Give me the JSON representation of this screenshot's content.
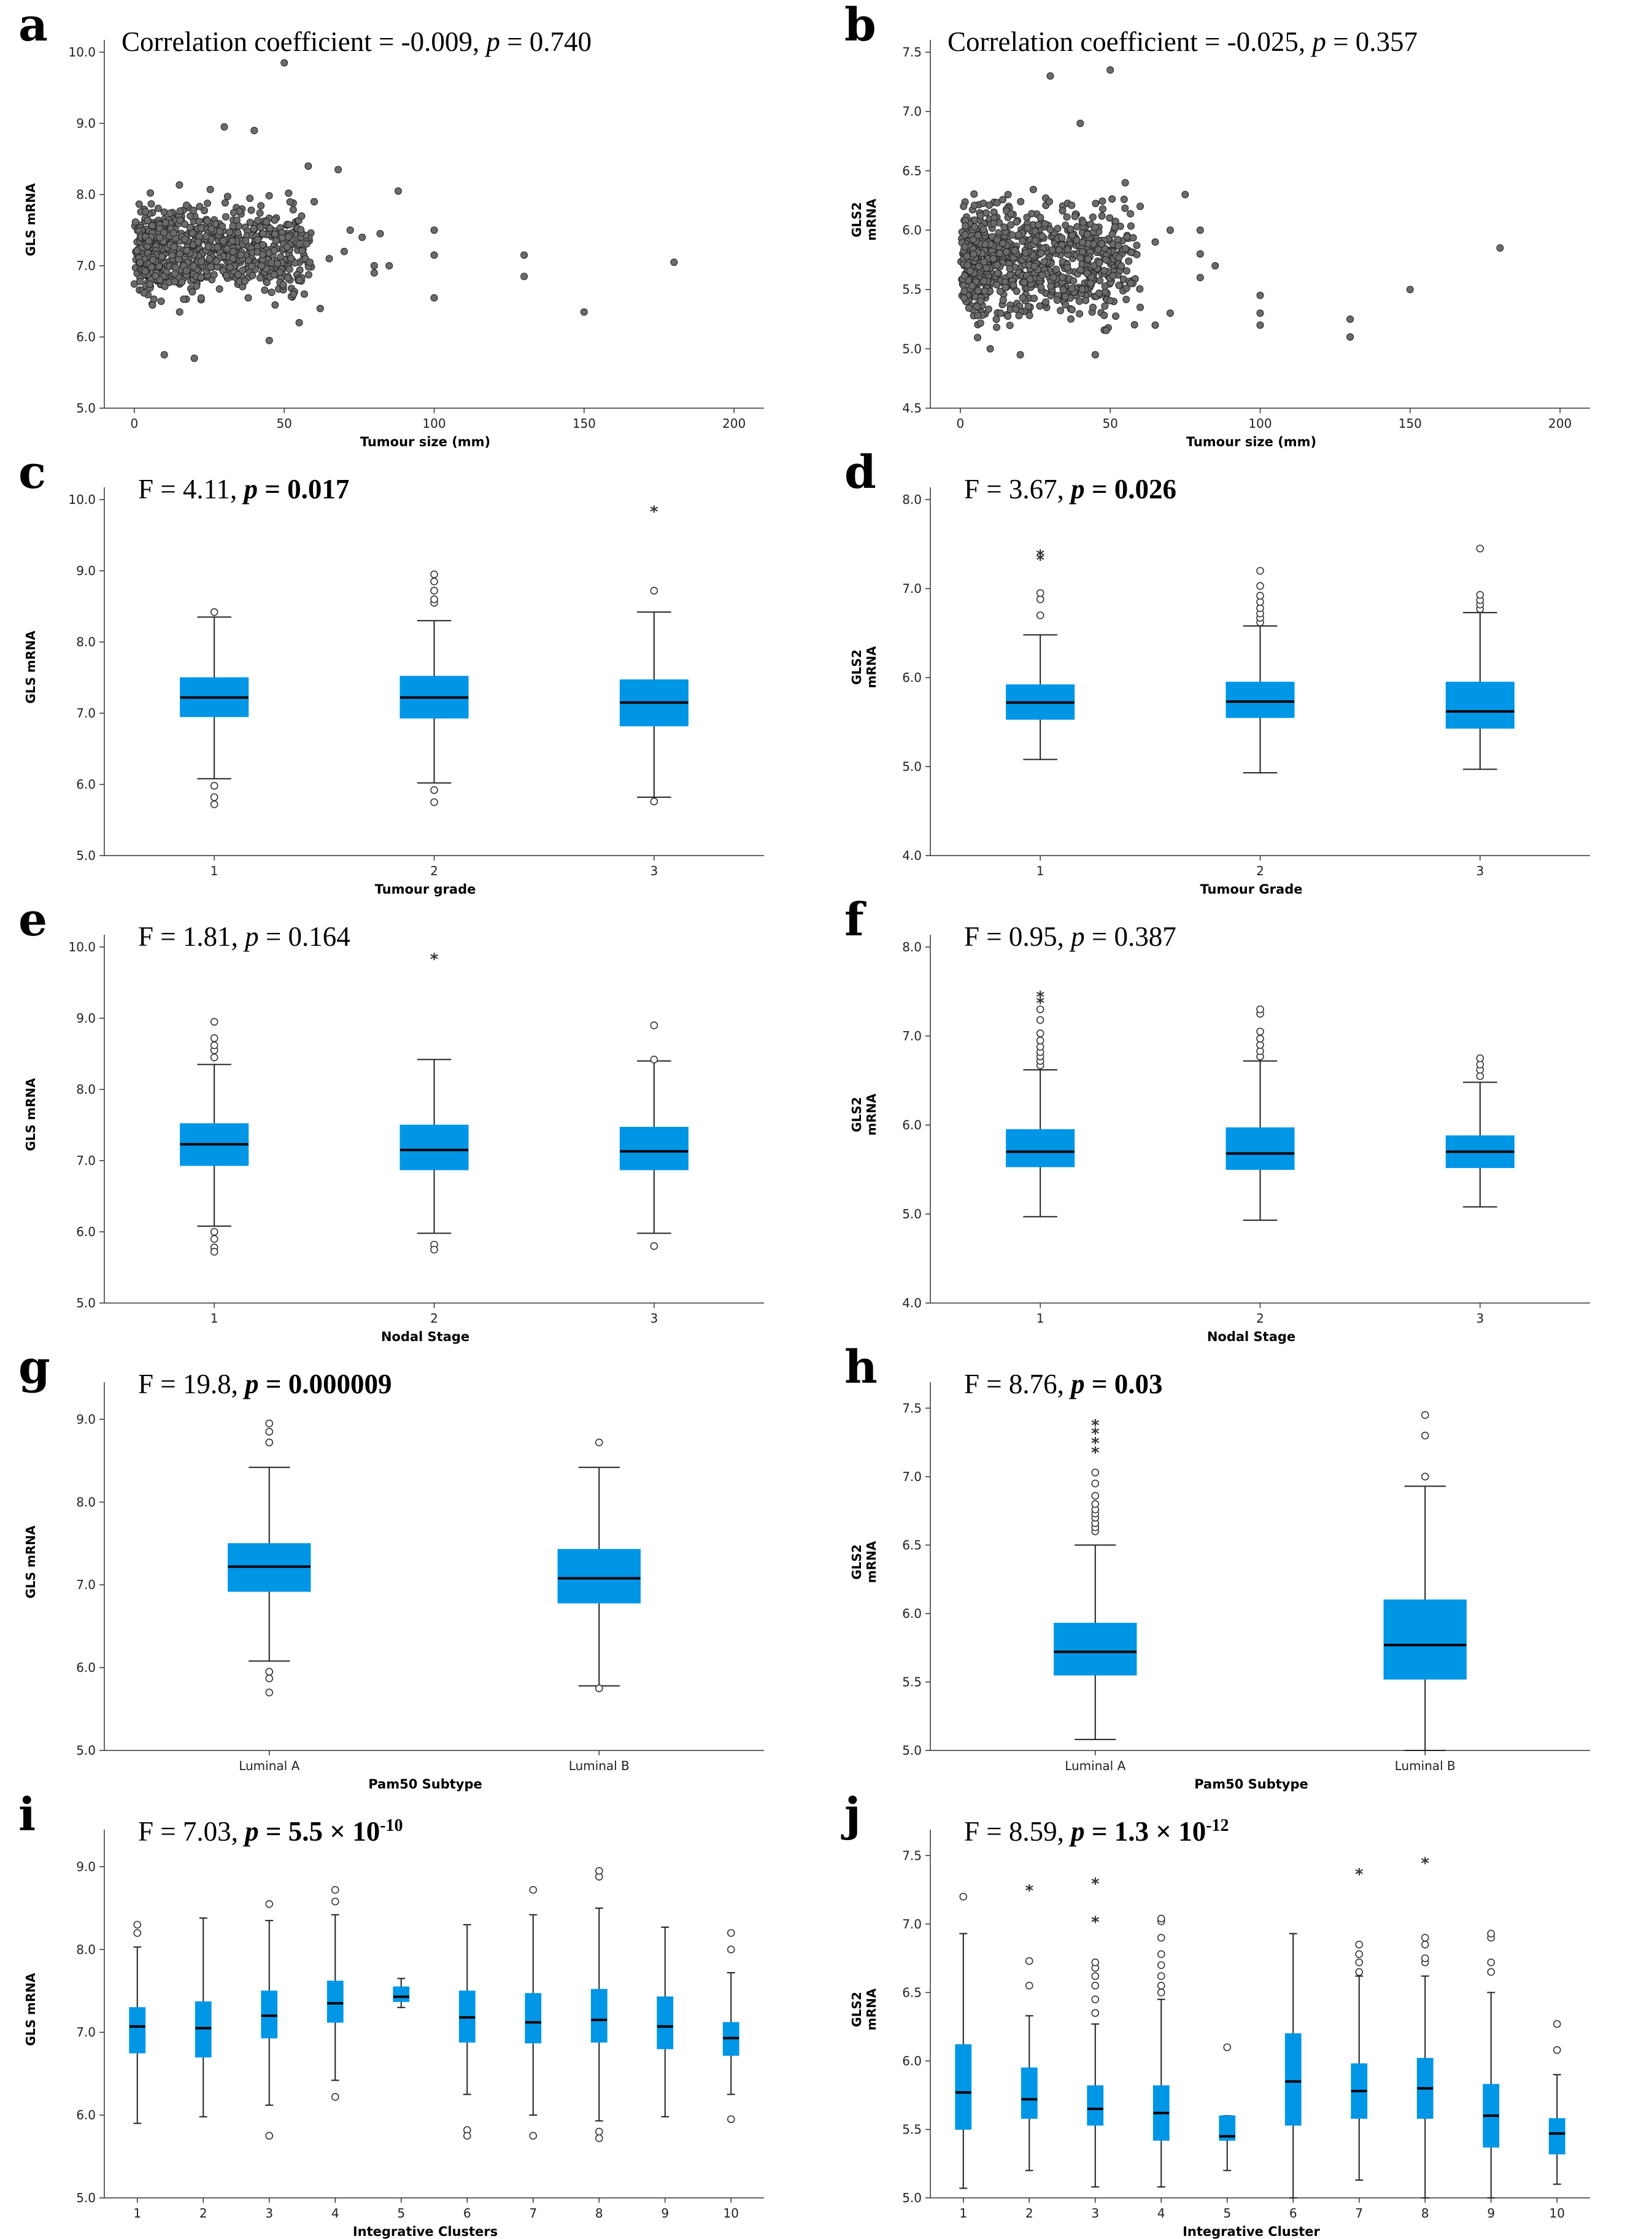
{
  "colors": {
    "box_fill": "#0096e6",
    "point_fill": "#6b6b6b",
    "axis": "#333333"
  },
  "chart_data": [
    {
      "id": "a",
      "type": "scatter",
      "panel_label": "a",
      "stat": {
        "prefix": "Correlation coefficient = -0.009, ",
        "p_label": "p",
        "p_text": " = 0.740",
        "bold": false
      },
      "xlabel": "Tumour size (mm)",
      "ylabel": "GLS mRNA",
      "xlim": [
        -10,
        210
      ],
      "ylim": [
        5.0,
        10.0
      ],
      "xticks": [
        0,
        50,
        100,
        150,
        200
      ],
      "yticks": [
        "5.0",
        "6.0",
        "7.0",
        "8.0",
        "9.0",
        "10.0"
      ],
      "cloud": {
        "x_range": [
          0,
          55
        ],
        "y_mean": 7.2,
        "y_sd": 0.5,
        "count": 900
      },
      "points": [
        [
          40,
          8.9
        ],
        [
          30,
          8.95
        ],
        [
          50,
          9.85
        ],
        [
          58,
          8.4
        ],
        [
          68,
          8.35
        ],
        [
          72,
          7.5
        ],
        [
          76,
          7.4
        ],
        [
          82,
          7.45
        ],
        [
          80,
          7.0
        ],
        [
          80,
          6.9
        ],
        [
          85,
          7.0
        ],
        [
          88,
          8.05
        ],
        [
          100,
          7.5
        ],
        [
          100,
          7.15
        ],
        [
          100,
          6.55
        ],
        [
          130,
          7.15
        ],
        [
          130,
          6.85
        ],
        [
          150,
          6.35
        ],
        [
          180,
          7.05
        ],
        [
          65,
          7.1
        ],
        [
          60,
          7.9
        ],
        [
          62,
          6.4
        ],
        [
          70,
          7.2
        ],
        [
          55,
          6.2
        ],
        [
          45,
          5.95
        ],
        [
          20,
          5.7
        ],
        [
          10,
          5.75
        ]
      ]
    },
    {
      "id": "b",
      "type": "scatter",
      "panel_label": "b",
      "stat": {
        "prefix": "Correlation coefficient = -0.025, ",
        "p_label": "p",
        "p_text": " = 0.357",
        "bold": false
      },
      "xlabel": "Tumour size (mm)",
      "ylabel": "GLS2 mRNA",
      "xlim": [
        -10,
        210
      ],
      "ylim": [
        4.5,
        7.5
      ],
      "xticks": [
        0,
        50,
        100,
        150,
        200
      ],
      "yticks": [
        "4.5",
        "5.0",
        "5.5",
        "6.0",
        "6.5",
        "7.0",
        "7.5"
      ],
      "cloud": {
        "x_range": [
          0,
          55
        ],
        "y_mean": 5.75,
        "y_sd": 0.38,
        "count": 900
      },
      "points": [
        [
          50,
          7.35
        ],
        [
          30,
          7.3
        ],
        [
          40,
          6.9
        ],
        [
          55,
          6.4
        ],
        [
          60,
          6.2
        ],
        [
          65,
          5.9
        ],
        [
          70,
          6.0
        ],
        [
          75,
          6.3
        ],
        [
          80,
          5.6
        ],
        [
          80,
          5.8
        ],
        [
          85,
          5.7
        ],
        [
          80,
          6.0
        ],
        [
          100,
          5.45
        ],
        [
          100,
          5.3
        ],
        [
          100,
          5.2
        ],
        [
          130,
          5.25
        ],
        [
          130,
          5.1
        ],
        [
          150,
          5.5
        ],
        [
          180,
          5.85
        ],
        [
          60,
          5.35
        ],
        [
          65,
          5.2
        ],
        [
          70,
          5.3
        ],
        [
          45,
          4.95
        ],
        [
          20,
          4.95
        ],
        [
          10,
          5.0
        ]
      ]
    },
    {
      "id": "c",
      "type": "boxplot",
      "panel_label": "c",
      "stat": {
        "prefix": "F = 4.11, ",
        "p_label": "p",
        "p_text": " = 0.017",
        "bold": true
      },
      "xlabel": "Tumour grade",
      "ylabel": "GLS mRNA",
      "ylim": [
        5.0,
        10.0
      ],
      "yticks": [
        "5.0",
        "6.0",
        "7.0",
        "8.0",
        "9.0",
        "10.0"
      ],
      "categories": [
        "1",
        "2",
        "3"
      ],
      "boxes": [
        {
          "min": 6.08,
          "q1": 6.95,
          "median": 7.22,
          "q3": 7.5,
          "max": 8.35,
          "outliers": [
            8.42,
            5.98,
            5.82,
            5.72
          ],
          "extremes": []
        },
        {
          "min": 6.02,
          "q1": 6.93,
          "median": 7.22,
          "q3": 7.52,
          "max": 8.3,
          "outliers": [
            8.55,
            8.6,
            8.72,
            8.85,
            8.95,
            5.92,
            5.75
          ],
          "extremes": []
        },
        {
          "min": 5.82,
          "q1": 6.82,
          "median": 7.15,
          "q3": 7.47,
          "max": 8.42,
          "outliers": [
            8.72,
            5.76
          ],
          "extremes": [
            9.84
          ]
        }
      ]
    },
    {
      "id": "d",
      "type": "boxplot",
      "panel_label": "d",
      "stat": {
        "prefix": "F = 3.67, ",
        "p_label": "p",
        "p_text": " = 0.026",
        "bold": true
      },
      "xlabel": "Tumour Grade",
      "ylabel": "GLS2 mRNA",
      "ylim": [
        4.0,
        8.0
      ],
      "yticks": [
        "4.0",
        "5.0",
        "6.0",
        "7.0",
        "8.0"
      ],
      "categories": [
        "1",
        "2",
        "3"
      ],
      "boxes": [
        {
          "min": 5.08,
          "q1": 5.53,
          "median": 5.72,
          "q3": 5.92,
          "max": 6.48,
          "outliers": [
            6.7,
            6.88,
            6.95
          ],
          "extremes": [
            7.33,
            7.38
          ]
        },
        {
          "min": 4.93,
          "q1": 5.55,
          "median": 5.73,
          "q3": 5.95,
          "max": 6.58,
          "outliers": [
            6.62,
            6.67,
            6.72,
            6.78,
            6.85,
            6.92,
            7.03,
            7.2
          ],
          "extremes": []
        },
        {
          "min": 4.97,
          "q1": 5.43,
          "median": 5.62,
          "q3": 5.95,
          "max": 6.73,
          "outliers": [
            6.77,
            6.82,
            6.87,
            6.93,
            7.45
          ],
          "extremes": []
        }
      ]
    },
    {
      "id": "e",
      "type": "boxplot",
      "panel_label": "e",
      "stat": {
        "prefix": "F = 1.81, ",
        "p_label": "p",
        "p_text": " = 0.164",
        "bold": false
      },
      "xlabel": "Nodal Stage",
      "ylabel": "GLS mRNA",
      "ylim": [
        5.0,
        10.0
      ],
      "yticks": [
        "5.0",
        "6.0",
        "7.0",
        "8.0",
        "9.0",
        "10.0"
      ],
      "categories": [
        "1",
        "2",
        "3"
      ],
      "boxes": [
        {
          "min": 6.08,
          "q1": 6.93,
          "median": 7.23,
          "q3": 7.52,
          "max": 8.35,
          "outliers": [
            8.45,
            8.55,
            8.62,
            8.72,
            8.95,
            6.0,
            5.9,
            5.78,
            5.72
          ],
          "extremes": []
        },
        {
          "min": 5.98,
          "q1": 6.87,
          "median": 7.15,
          "q3": 7.5,
          "max": 8.42,
          "outliers": [
            5.82,
            5.75
          ],
          "extremes": [
            9.84
          ]
        },
        {
          "min": 5.98,
          "q1": 6.87,
          "median": 7.13,
          "q3": 7.47,
          "max": 8.4,
          "outliers": [
            8.42,
            8.9,
            5.8
          ],
          "extremes": []
        }
      ]
    },
    {
      "id": "f",
      "type": "boxplot",
      "panel_label": "f",
      "stat": {
        "prefix": "F = 0.95, ",
        "p_label": "p",
        "p_text": " = 0.387",
        "bold": false
      },
      "xlabel": "Nodal Stage",
      "ylabel": "GLS2 mRNA",
      "ylim": [
        4.0,
        8.0
      ],
      "yticks": [
        "4.0",
        "5.0",
        "6.0",
        "7.0",
        "8.0"
      ],
      "categories": [
        "1",
        "2",
        "3"
      ],
      "boxes": [
        {
          "min": 4.97,
          "q1": 5.53,
          "median": 5.7,
          "q3": 5.95,
          "max": 6.62,
          "outliers": [
            6.67,
            6.72,
            6.77,
            6.82,
            6.88,
            6.95,
            7.03,
            7.18,
            7.3
          ],
          "extremes": [
            7.38,
            7.45
          ]
        },
        {
          "min": 4.93,
          "q1": 5.5,
          "median": 5.68,
          "q3": 5.97,
          "max": 6.72,
          "outliers": [
            6.77,
            6.83,
            6.9,
            6.97,
            7.05,
            7.25,
            7.3
          ],
          "extremes": []
        },
        {
          "min": 5.08,
          "q1": 5.52,
          "median": 5.7,
          "q3": 5.88,
          "max": 6.48,
          "outliers": [
            6.55,
            6.62,
            6.68,
            6.75
          ],
          "extremes": []
        }
      ]
    },
    {
      "id": "g",
      "type": "boxplot",
      "panel_label": "g",
      "stat": {
        "prefix": "F = 19.8, ",
        "p_label": "p",
        "p_text": " = 0.000009",
        "bold": true
      },
      "xlabel": "Pam50 Subtype",
      "ylabel": "GLS mRNA",
      "ylim": [
        5.0,
        9.3
      ],
      "yticks": [
        "5.0",
        "6.0",
        "7.0",
        "8.0",
        "9.0"
      ],
      "categories": [
        "Luminal A",
        "Luminal B"
      ],
      "boxes": [
        {
          "min": 6.08,
          "q1": 6.92,
          "median": 7.22,
          "q3": 7.5,
          "max": 8.42,
          "outliers": [
            8.72,
            8.85,
            8.95,
            5.95,
            5.87,
            5.7
          ],
          "extremes": []
        },
        {
          "min": 5.78,
          "q1": 6.78,
          "median": 7.08,
          "q3": 7.43,
          "max": 8.42,
          "outliers": [
            8.72,
            5.75
          ],
          "extremes": []
        }
      ]
    },
    {
      "id": "h",
      "type": "boxplot",
      "panel_label": "h",
      "stat": {
        "prefix": "F = 8.76, ",
        "p_label": "p",
        "p_text": " = 0.03",
        "bold": true
      },
      "xlabel": "Pam50 Subtype",
      "ylabel": "GLS2 mRNA",
      "ylim": [
        5.0,
        7.6
      ],
      "yticks": [
        "5.0",
        "5.5",
        "6.0",
        "6.5",
        "7.0",
        "7.5"
      ],
      "categories": [
        "Luminal A",
        "Luminal B"
      ],
      "boxes": [
        {
          "min": 5.08,
          "q1": 5.55,
          "median": 5.72,
          "q3": 5.93,
          "max": 6.5,
          "outliers": [
            6.6,
            6.63,
            6.66,
            6.7,
            6.73,
            6.76,
            6.8,
            6.86,
            6.95,
            7.03
          ],
          "extremes": [
            7.18,
            7.25,
            7.32,
            7.38
          ]
        },
        {
          "min": 5.0,
          "q1": 5.52,
          "median": 5.77,
          "q3": 6.1,
          "max": 6.93,
          "outliers": [
            7.0,
            7.3,
            7.45
          ],
          "extremes": []
        }
      ]
    },
    {
      "id": "i",
      "type": "boxplot",
      "panel_label": "i",
      "stat": {
        "prefix": "F = 7.03, ",
        "p_label": "p",
        "p_text": " = 5.5 × 10",
        "sup": "-10",
        "bold": true
      },
      "xlabel": "Integrative Clusters",
      "ylabel": "GLS mRNA",
      "ylim": [
        5.0,
        9.3
      ],
      "yticks": [
        "5.0",
        "6.0",
        "7.0",
        "8.0",
        "9.0"
      ],
      "categories": [
        "1",
        "2",
        "3",
        "4",
        "5",
        "6",
        "7",
        "8",
        "9",
        "10"
      ],
      "boxes": [
        {
          "min": 5.9,
          "q1": 6.75,
          "median": 7.07,
          "q3": 7.3,
          "max": 8.03,
          "outliers": [
            8.2,
            8.3
          ],
          "extremes": []
        },
        {
          "min": 5.98,
          "q1": 6.7,
          "median": 7.05,
          "q3": 7.37,
          "max": 8.38,
          "outliers": [],
          "extremes": []
        },
        {
          "min": 6.12,
          "q1": 6.93,
          "median": 7.2,
          "q3": 7.5,
          "max": 8.35,
          "outliers": [
            8.55,
            5.75
          ],
          "extremes": []
        },
        {
          "min": 6.42,
          "q1": 7.12,
          "median": 7.35,
          "q3": 7.62,
          "max": 8.42,
          "outliers": [
            8.58,
            8.72,
            6.22
          ],
          "extremes": []
        },
        {
          "min": 7.3,
          "q1": 7.37,
          "median": 7.43,
          "q3": 7.55,
          "max": 7.65,
          "outliers": [],
          "extremes": []
        },
        {
          "min": 6.25,
          "q1": 6.88,
          "median": 7.18,
          "q3": 7.5,
          "max": 8.3,
          "outliers": [
            5.82,
            5.75
          ],
          "extremes": []
        },
        {
          "min": 6.0,
          "q1": 6.87,
          "median": 7.12,
          "q3": 7.47,
          "max": 8.42,
          "outliers": [
            8.72,
            5.75
          ],
          "extremes": []
        },
        {
          "min": 5.93,
          "q1": 6.88,
          "median": 7.15,
          "q3": 7.52,
          "max": 8.5,
          "outliers": [
            8.88,
            8.95,
            5.8,
            5.72
          ],
          "extremes": []
        },
        {
          "min": 5.98,
          "q1": 6.8,
          "median": 7.07,
          "q3": 7.43,
          "max": 8.27,
          "outliers": [],
          "extremes": []
        },
        {
          "min": 6.25,
          "q1": 6.72,
          "median": 6.93,
          "q3": 7.12,
          "max": 7.72,
          "outliers": [
            8.0,
            8.2,
            5.95
          ],
          "extremes": []
        }
      ]
    },
    {
      "id": "j",
      "type": "boxplot",
      "panel_label": "j",
      "stat": {
        "prefix": "F = 8.59, ",
        "p_label": "p",
        "p_text": " = 1.3 × 10",
        "sup": "-12",
        "bold": true
      },
      "xlabel": "Integrative Cluster",
      "ylabel": "GLS2 mRNA",
      "ylim": [
        5.0,
        7.6
      ],
      "yticks": [
        "5.0",
        "5.5",
        "6.0",
        "6.5",
        "7.0",
        "7.5"
      ],
      "categories": [
        "1",
        "2",
        "3",
        "4",
        "5",
        "6",
        "7",
        "8",
        "9",
        "10"
      ],
      "boxes": [
        {
          "min": 5.07,
          "q1": 5.5,
          "median": 5.77,
          "q3": 6.12,
          "max": 6.93,
          "outliers": [
            7.2
          ],
          "extremes": []
        },
        {
          "min": 5.2,
          "q1": 5.58,
          "median": 5.72,
          "q3": 5.95,
          "max": 6.33,
          "outliers": [
            6.55,
            6.73
          ],
          "extremes": [
            7.25
          ]
        },
        {
          "min": 5.08,
          "q1": 5.53,
          "median": 5.65,
          "q3": 5.82,
          "max": 6.27,
          "outliers": [
            6.35,
            6.45,
            6.55,
            6.62,
            6.68,
            6.72
          ],
          "extremes": [
            7.02,
            7.3
          ]
        },
        {
          "min": 5.08,
          "q1": 5.42,
          "median": 5.62,
          "q3": 5.82,
          "max": 6.45,
          "outliers": [
            6.5,
            6.55,
            6.62,
            6.7,
            6.78,
            6.9,
            7.02,
            7.04
          ],
          "extremes": []
        },
        {
          "min": 5.2,
          "q1": 5.42,
          "median": 5.45,
          "q3": 5.6,
          "max": 5.6,
          "outliers": [
            6.1
          ],
          "extremes": []
        },
        {
          "min": 5.0,
          "q1": 5.53,
          "median": 5.85,
          "q3": 6.2,
          "max": 6.93,
          "outliers": [],
          "extremes": []
        },
        {
          "min": 5.13,
          "q1": 5.58,
          "median": 5.78,
          "q3": 5.98,
          "max": 6.62,
          "outliers": [
            6.65,
            6.72,
            6.78,
            6.85
          ],
          "extremes": [
            7.37
          ]
        },
        {
          "min": 5.0,
          "q1": 5.58,
          "median": 5.8,
          "q3": 6.02,
          "max": 6.62,
          "outliers": [
            6.72,
            6.75,
            6.85,
            6.9
          ],
          "extremes": [
            7.45
          ]
        },
        {
          "min": 5.0,
          "q1": 5.37,
          "median": 5.6,
          "q3": 5.83,
          "max": 6.5,
          "outliers": [
            6.65,
            6.72,
            6.9,
            6.93
          ],
          "extremes": []
        },
        {
          "min": 5.1,
          "q1": 5.32,
          "median": 5.47,
          "q3": 5.58,
          "max": 5.9,
          "outliers": [
            6.08,
            6.27
          ],
          "extremes": []
        }
      ]
    }
  ]
}
